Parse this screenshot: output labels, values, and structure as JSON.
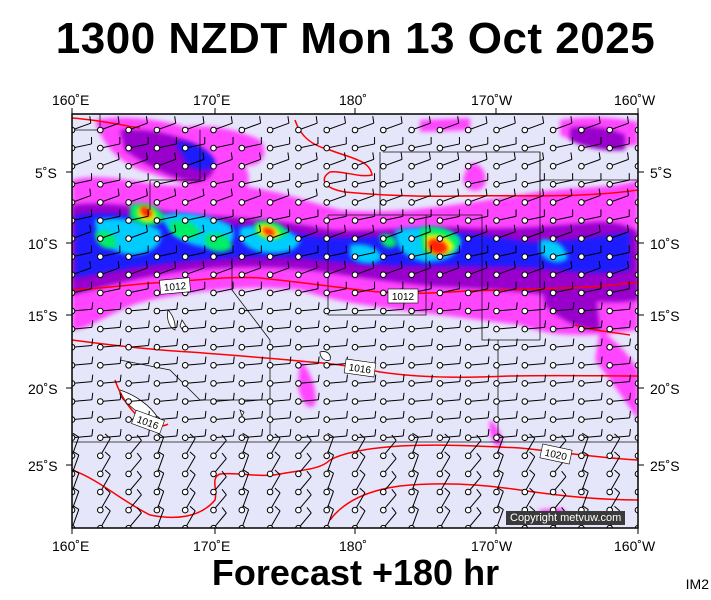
{
  "title": "1300 NZDT Mon 13 Oct 2025",
  "footer": "Forecast +180 hr",
  "tag": "IM2",
  "copyright": "Copyright metvuw.com",
  "axes": {
    "top_lon": [
      "160˚E",
      "170˚E",
      "180˚",
      "170˚W",
      "160˚W"
    ],
    "bottom_lon": [
      "160˚E",
      "170˚E",
      "180˚",
      "170˚W",
      "160˚W"
    ],
    "left_lat": [
      "5˚S",
      "10˚S",
      "15˚S",
      "20˚S",
      "25˚S"
    ],
    "right_lat": [
      "5˚S",
      "10˚S",
      "15˚S",
      "20˚S",
      "25˚S"
    ]
  },
  "isobar_labels": [
    "1012",
    "1012",
    "1016",
    "1016",
    "1020"
  ],
  "colors": {
    "ocean": "#e6e6fb",
    "isobar": "#ff0000",
    "rain_light": "#ff44ff",
    "rain_mid": "#9900cc",
    "rain_heavy": "#1a1aff",
    "rain_vheavy": "#00ccff",
    "rain_extreme": "#00ee66",
    "rain_top": "#ffff00",
    "rain_peak": "#ff2200"
  }
}
